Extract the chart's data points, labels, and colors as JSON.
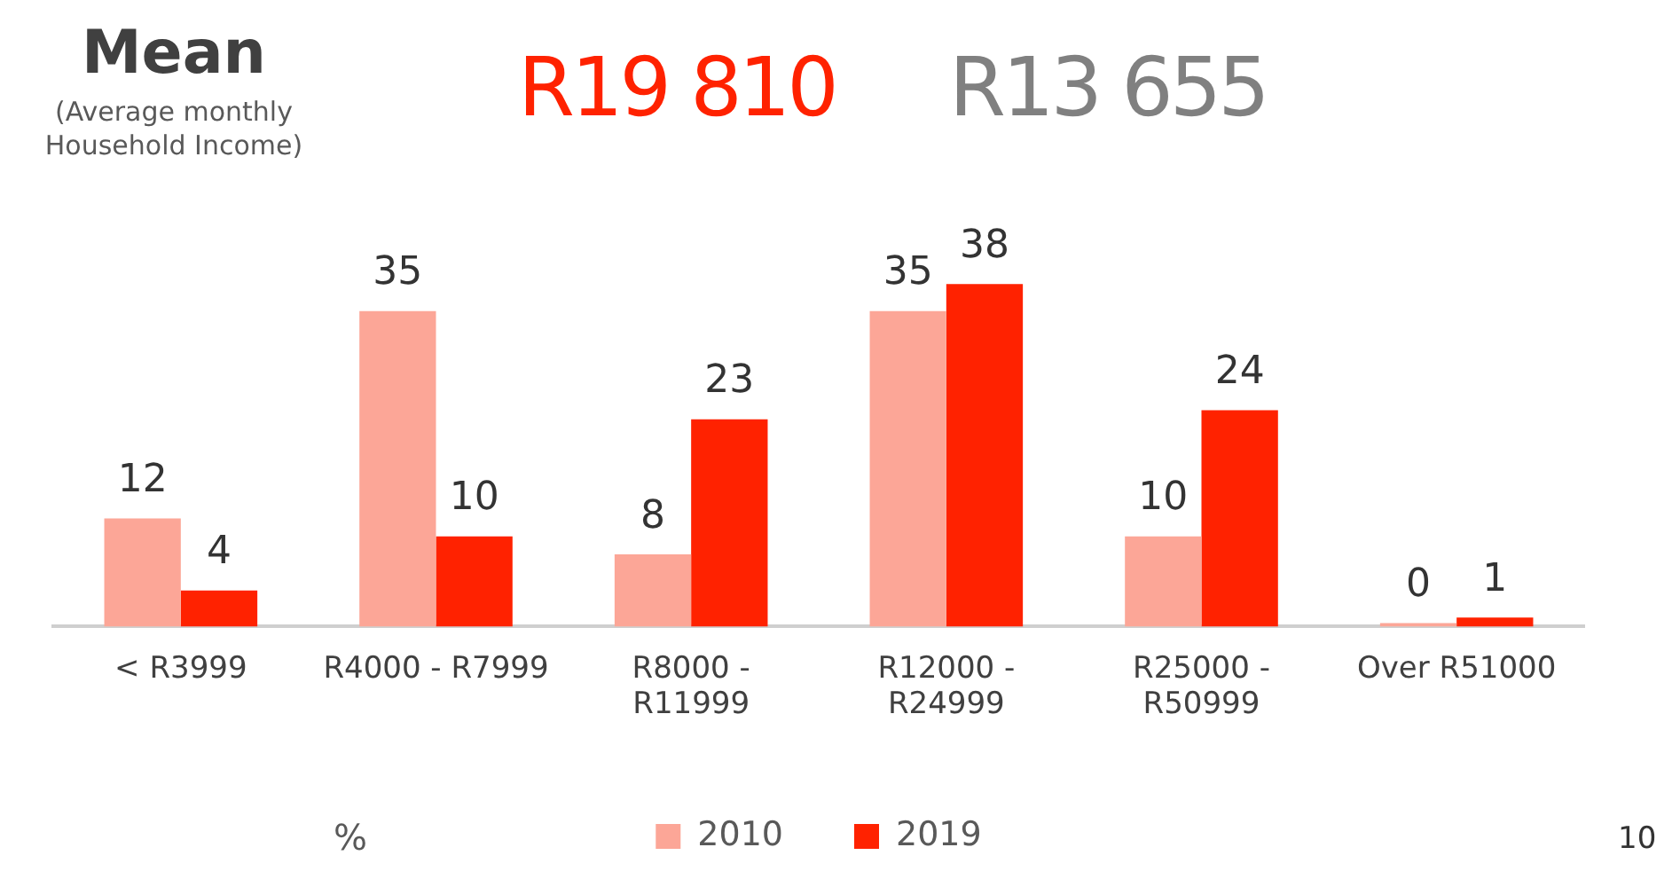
{
  "chart_data": {
    "type": "bar",
    "title": "Mean",
    "subtitle": "(Average monthly Household Income)",
    "categories": [
      "< R3999",
      "R4000 - R7999",
      "R8000 - R11999",
      "R12000 - R24999",
      "R25000 - R50999",
      "Over R51000"
    ],
    "series": [
      {
        "name": "2010",
        "color": "#fca697",
        "values": [
          12,
          35,
          8,
          35,
          10,
          0
        ]
      },
      {
        "name": "2019",
        "color": "#ff2200",
        "values": [
          4,
          10,
          23,
          38,
          24,
          1
        ]
      }
    ],
    "data_labels": true,
    "grid": false,
    "legend": "bottom",
    "annotations": [
      "R19 810",
      "R13 655",
      "%",
      "10"
    ]
  }
}
